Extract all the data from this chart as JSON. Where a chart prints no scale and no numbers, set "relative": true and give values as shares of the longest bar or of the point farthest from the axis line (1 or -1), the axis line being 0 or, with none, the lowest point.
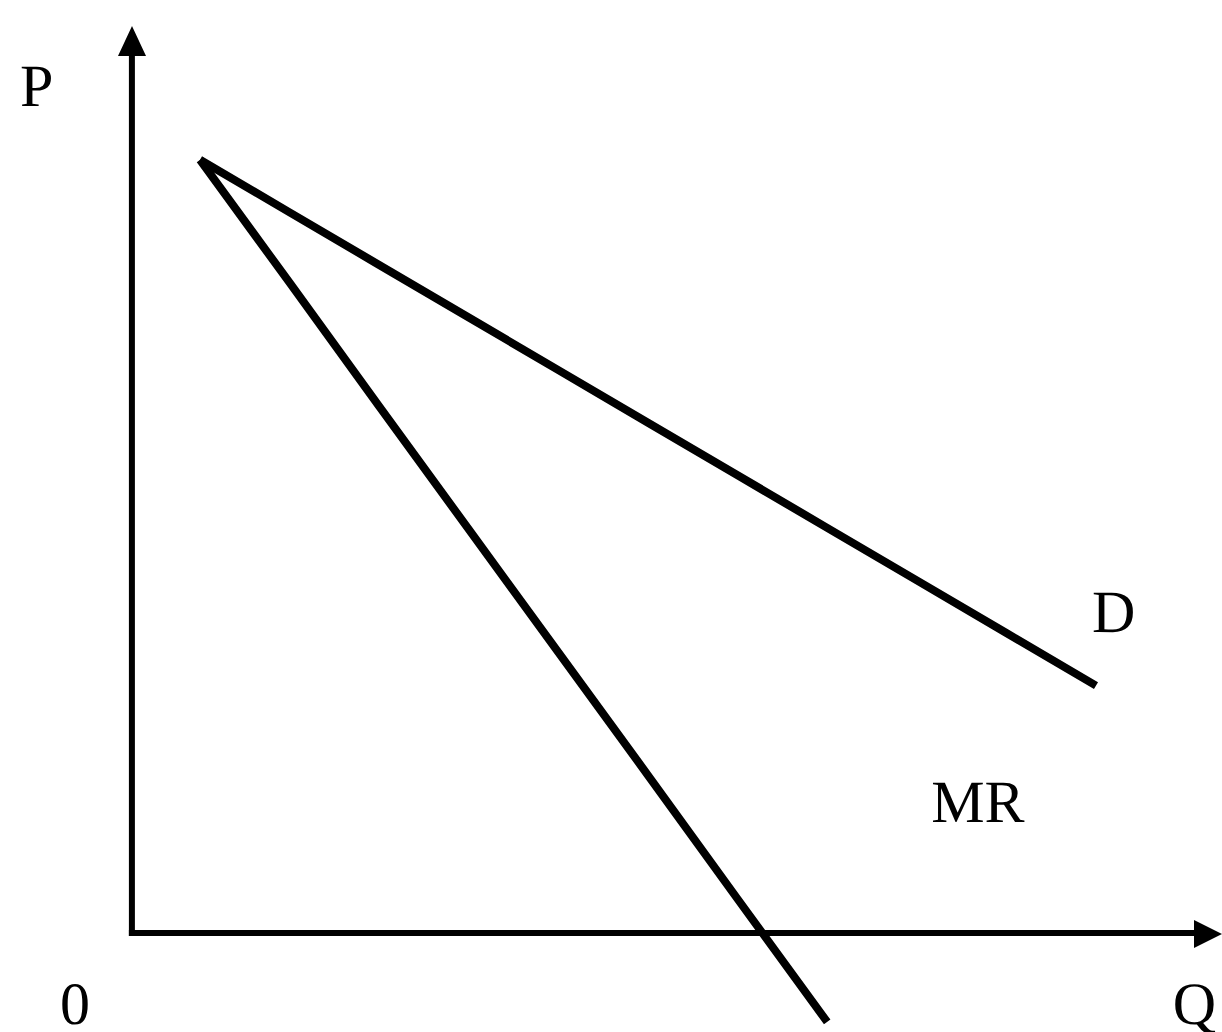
{
  "chart_data": {
    "type": "line",
    "relative": true,
    "xlabel": "Q",
    "ylabel": "P",
    "annotations": [
      "0"
    ],
    "categories": [
      null,
      null,
      null,
      null,
      null,
      null,
      null,
      null,
      null,
      null,
      null
    ],
    "marker": "none",
    "series": [
      {
        "name": "D",
        "color": "#000000",
        "values": [
          1,
          0.932,
          0.864,
          0.796,
          0.728,
          0.66,
          0.592,
          0.524,
          0.456,
          0.388,
          0.32
        ]
      },
      {
        "name": "MR",
        "color": "#000000",
        "values": [
          1,
          0.841,
          0.681,
          0.522,
          0.363,
          0.204,
          0.044,
          -0.115,
          null,
          null,
          null
        ]
      }
    ]
  }
}
